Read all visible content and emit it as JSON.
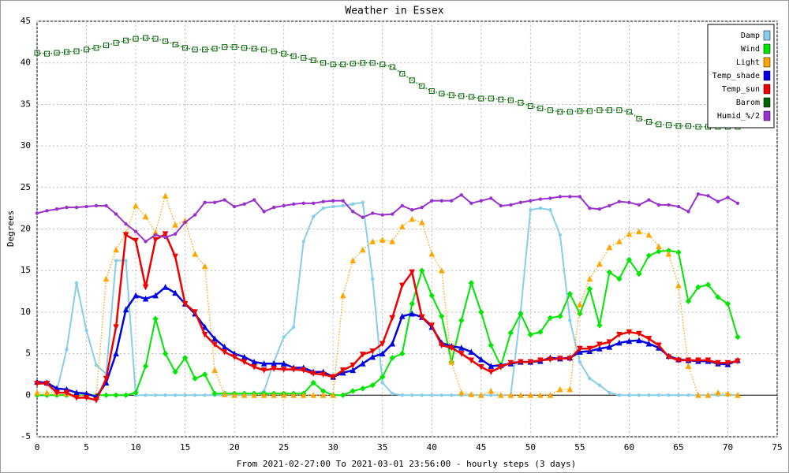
{
  "chart_data": {
    "type": "line",
    "title": "Weather in Essex",
    "x_label": "From 2021-02-27:00 To 2021-03-01 23:56:00 - hourly steps (3 days)",
    "y_label": "Degrees",
    "x": [
      0,
      1,
      2,
      3,
      4,
      5,
      6,
      7,
      8,
      9,
      10,
      11,
      12,
      13,
      14,
      15,
      16,
      17,
      18,
      19,
      20,
      21,
      22,
      23,
      24,
      25,
      26,
      27,
      28,
      29,
      30,
      31,
      32,
      33,
      34,
      35,
      36,
      37,
      38,
      39,
      40,
      41,
      42,
      43,
      44,
      45,
      46,
      47,
      48,
      49,
      50,
      51,
      52,
      53,
      54,
      55,
      56,
      57,
      58,
      59,
      60,
      61,
      62,
      63,
      64,
      65,
      66,
      67,
      68,
      69,
      70,
      71
    ],
    "xlim": [
      0,
      75
    ],
    "xticks": [
      0,
      5,
      10,
      15,
      20,
      25,
      30,
      35,
      40,
      45,
      50,
      55,
      60,
      65,
      70,
      75
    ],
    "ylim": [
      -5,
      45
    ],
    "yticks": [
      -5,
      0,
      5,
      10,
      15,
      20,
      25,
      30,
      35,
      40,
      45
    ],
    "grid": true,
    "legend": "top-right",
    "series": [
      {
        "name": "Damp",
        "color": "#87ceeb",
        "marker": "circle",
        "dotted": false,
        "values": [
          1.5,
          1.5,
          0.5,
          5.5,
          13.5,
          7.8,
          3.6,
          2.6,
          16.2,
          16.2,
          0,
          0,
          0,
          0,
          0,
          0,
          0,
          0,
          0,
          0,
          0,
          0,
          0,
          0.5,
          4,
          7,
          8.2,
          18.5,
          21.5,
          22.5,
          22.7,
          22.8,
          23,
          23.2,
          14,
          1.5,
          0.2,
          0,
          0,
          0,
          0,
          0,
          0,
          0,
          0,
          0,
          0,
          0,
          0,
          10,
          22.3,
          22.5,
          22.3,
          19.3,
          9,
          4,
          2,
          1.2,
          0.3,
          0,
          0,
          0,
          0,
          0,
          0,
          0,
          0,
          0,
          0,
          0,
          0,
          0
        ]
      },
      {
        "name": "Wind",
        "color": "#00e600",
        "marker": "diamond",
        "dotted": false,
        "values": [
          0,
          0,
          0,
          0,
          0,
          0,
          0,
          0,
          0,
          0,
          0.3,
          3.5,
          9.2,
          5,
          2.8,
          4.5,
          2,
          2.5,
          0.2,
          0.2,
          0.2,
          0.2,
          0.2,
          0.2,
          0.2,
          0.2,
          0.2,
          0.2,
          1.5,
          0.5,
          0,
          0,
          0.5,
          0.8,
          1.2,
          2.2,
          4.5,
          5,
          11,
          15,
          12,
          9.5,
          4,
          9,
          13.5,
          10,
          6,
          3.5,
          7.5,
          9.8,
          7.3,
          7.6,
          9.3,
          9.5,
          12.2,
          9.8,
          12.8,
          8.4,
          14.8,
          14,
          16.3,
          14.6,
          16.8,
          17.3,
          17.4,
          17.2,
          11.3,
          13,
          13.3,
          11.8,
          11,
          7
        ]
      },
      {
        "name": "Light",
        "color": "#ffa500",
        "marker": "triangle",
        "dotted": true,
        "values": [
          0.3,
          0.3,
          0.3,
          0.2,
          0,
          0,
          0,
          14,
          17.5,
          19.5,
          22.8,
          21.5,
          19.6,
          24,
          20.5,
          21,
          17,
          15.5,
          3,
          0.1,
          0,
          0,
          0,
          0,
          0,
          0,
          0,
          0,
          0,
          0,
          0,
          12,
          16.2,
          17.5,
          18.5,
          18.7,
          18.5,
          20.3,
          21.2,
          20.8,
          17,
          15,
          4,
          0.3,
          0.1,
          0,
          0.5,
          0,
          0,
          0,
          0,
          0,
          0,
          0.7,
          0.7,
          10.9,
          14,
          15.8,
          17.8,
          18.5,
          19.4,
          19.7,
          19.3,
          17.9,
          17,
          13.2,
          3.5,
          0,
          0,
          0.3,
          0.2,
          0
        ]
      },
      {
        "name": "Temp_shade",
        "color": "#0000e0",
        "marker": "triangle",
        "dotted": false,
        "values": [
          1.6,
          1.5,
          0.8,
          0.7,
          0.3,
          0.2,
          -0.2,
          1.5,
          5,
          10.3,
          12,
          11.6,
          12,
          13,
          12.3,
          11,
          9.8,
          8.2,
          6.8,
          5.8,
          5,
          4.6,
          4,
          3.8,
          3.8,
          3.8,
          3.3,
          3.3,
          2.8,
          2.8,
          2.2,
          2.7,
          3,
          3.8,
          4.6,
          5,
          6.2,
          9.5,
          9.8,
          9.4,
          8.2,
          6.3,
          5.9,
          5.7,
          5.2,
          4.3,
          3.5,
          3.6,
          3.8,
          4,
          4,
          4.1,
          4.5,
          4.4,
          4.5,
          5.2,
          5.3,
          5.6,
          5.8,
          6.3,
          6.5,
          6.6,
          6.2,
          5.7,
          4.7,
          4.3,
          4.2,
          4.1,
          4.1,
          3.8,
          3.7,
          4.2
        ]
      },
      {
        "name": "Temp_sun",
        "color": "#ee0000",
        "marker": "triangle-down",
        "dotted": false,
        "values": [
          1.4,
          1.4,
          0.3,
          0.3,
          -0.3,
          -0.3,
          -0.6,
          2,
          8.2,
          19.3,
          18.6,
          13,
          18.7,
          19.4,
          16.7,
          11,
          10,
          7.3,
          6.1,
          5.2,
          4.6,
          4,
          3.4,
          3,
          3.2,
          3.1,
          3.1,
          3,
          2.6,
          2.5,
          2.2,
          3,
          3.6,
          4.9,
          5.3,
          6.2,
          9.3,
          13.2,
          14.8,
          9.4,
          8.4,
          6,
          5.7,
          5,
          4.2,
          3.4,
          2.8,
          3.4,
          3.9,
          4,
          4,
          4.2,
          4.3,
          4.4,
          4.4,
          5.6,
          5.6,
          6.1,
          6.4,
          7.3,
          7.6,
          7.4,
          6.8,
          6,
          4.6,
          4.2,
          4.2,
          4.2,
          4.2,
          3.9,
          3.9,
          4.1
        ]
      },
      {
        "name": "Barom",
        "color": "#006400",
        "marker": "square",
        "dotted": true,
        "values": [
          41.2,
          41.1,
          41.2,
          41.3,
          41.4,
          41.6,
          41.8,
          42.1,
          42.4,
          42.7,
          42.9,
          43,
          42.9,
          42.6,
          42.2,
          41.8,
          41.6,
          41.6,
          41.7,
          41.9,
          41.9,
          41.8,
          41.7,
          41.6,
          41.4,
          41.1,
          40.8,
          40.6,
          40.3,
          40,
          39.8,
          39.8,
          39.9,
          40,
          40,
          39.8,
          39.5,
          38.7,
          37.9,
          37.2,
          36.6,
          36.3,
          36.1,
          36,
          35.9,
          35.7,
          35.7,
          35.6,
          35.5,
          35.2,
          34.8,
          34.5,
          34.3,
          34.1,
          34.1,
          34.2,
          34.2,
          34.3,
          34.3,
          34.3,
          34.1,
          33.3,
          32.9,
          32.6,
          32.5,
          32.4,
          32.4,
          32.3,
          32.3,
          32.3,
          32.3,
          32.3
        ]
      },
      {
        "name": "Humid_%/2",
        "color": "#9932cc",
        "marker": "circle",
        "dotted": false,
        "values": [
          21.9,
          22.2,
          22.4,
          22.6,
          22.6,
          22.7,
          22.8,
          22.8,
          21.8,
          20.6,
          19.7,
          18.5,
          19.3,
          19,
          19.4,
          20.8,
          21.7,
          23.2,
          23.2,
          23.5,
          22.7,
          23,
          23.5,
          22.1,
          22.6,
          22.8,
          23,
          23.1,
          23.1,
          23.3,
          23.4,
          23.4,
          22.1,
          21.4,
          21.9,
          21.7,
          21.8,
          22.8,
          22.3,
          22.6,
          23.4,
          23.4,
          23.4,
          24.1,
          23.1,
          23.4,
          23.7,
          22.8,
          22.9,
          23.2,
          23.4,
          23.6,
          23.7,
          23.9,
          23.9,
          23.9,
          22.5,
          22.4,
          22.8,
          23.3,
          23.2,
          22.9,
          23.5,
          22.9,
          22.9,
          22.7,
          22.1,
          24.2,
          24,
          23.3,
          23.8,
          23.1
        ]
      }
    ]
  }
}
